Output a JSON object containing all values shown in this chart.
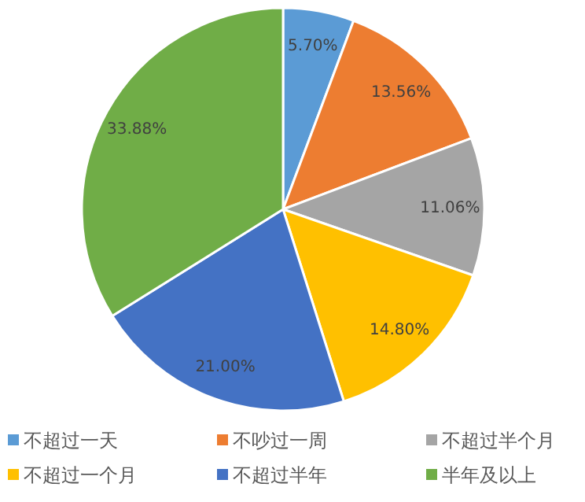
{
  "chart_data": {
    "type": "pie",
    "categories": [
      "不超过一天",
      "不吵过一周",
      "不超过半个月",
      "不超过一个月",
      "不超过半年",
      "半年及以上"
    ],
    "values": [
      5.7,
      13.56,
      11.06,
      14.8,
      21.0,
      33.88
    ],
    "value_labels": [
      "5.70%",
      "13.56%",
      "11.06%",
      "14.80%",
      "21.00%",
      "33.88%"
    ],
    "colors": [
      "#5b9bd5",
      "#ed7d31",
      "#a5a5a5",
      "#ffc000",
      "#4472c4",
      "#70ad47"
    ],
    "legend": "bottom"
  }
}
